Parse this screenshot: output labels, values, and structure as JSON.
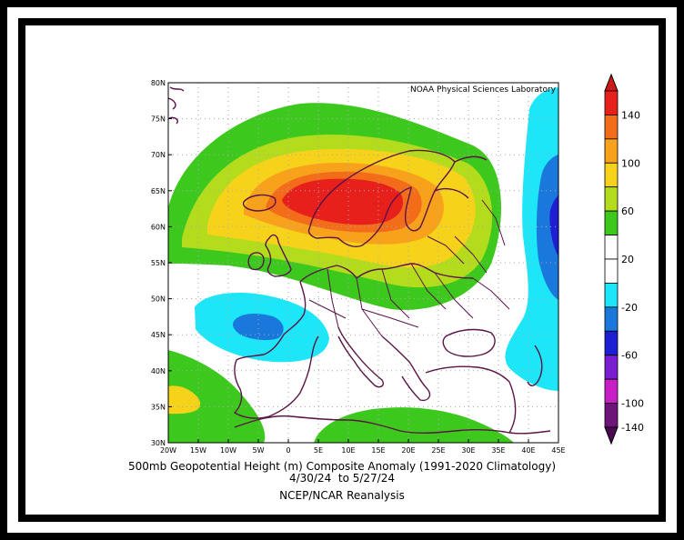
{
  "map": {
    "credit": "NOAA Physical Sciences Laboratory",
    "lat_labels": [
      "30N",
      "35N",
      "40N",
      "45N",
      "50N",
      "55N",
      "60N",
      "65N",
      "70N",
      "75N",
      "80N"
    ],
    "lon_labels": [
      "20W",
      "15W",
      "10W",
      "5W",
      "0",
      "5E",
      "10E",
      "15E",
      "20E",
      "25E",
      "30E",
      "35E",
      "40E",
      "45E"
    ],
    "lat_range": [
      30,
      80
    ],
    "lon_range": [
      -20,
      45
    ]
  },
  "caption": {
    "line1": "500mb Geopotential Height (m) Composite Anomaly (1991-2020 Climatology)",
    "line2": "4/30/24  to 5/27/24",
    "line3": "NCEP/NCAR Reanalysis"
  },
  "colorbar": {
    "labels": [
      "140",
      "100",
      "60",
      "20",
      "-20",
      "-60",
      "-100",
      "-140"
    ],
    "colors": [
      "#e8201c",
      "#f26c1a",
      "#f7a21a",
      "#f7d21a",
      "#b2dc1c",
      "#3cc81c",
      "#ffffff",
      "#ffffff",
      "#1ce6f7",
      "#1a78dc",
      "#1e1ed2",
      "#7a1ed2",
      "#c81ec8",
      "#6e147a"
    ]
  }
}
